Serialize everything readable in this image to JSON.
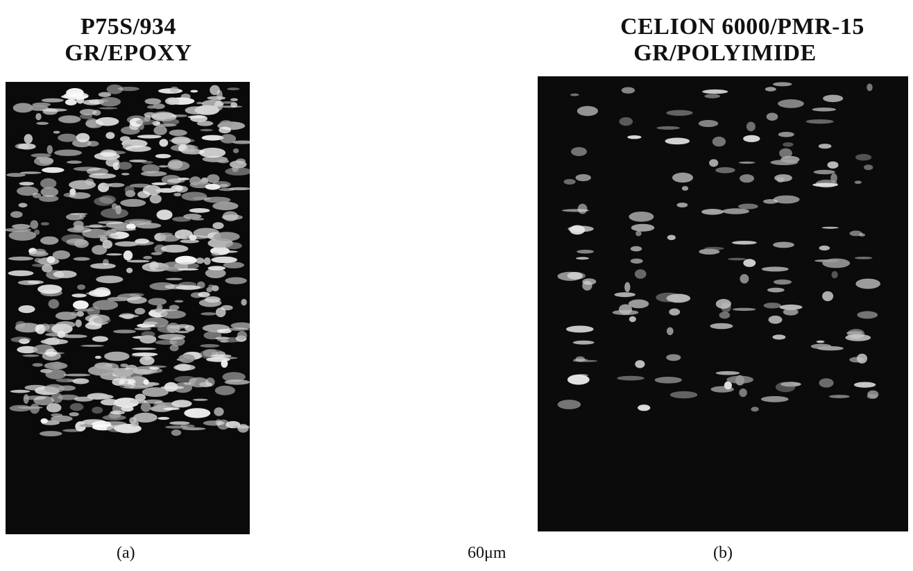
{
  "panels": [
    {
      "title": [
        "P75S/934",
        "GR/EPOXY"
      ],
      "caption": "(a)"
    },
    {
      "title": [
        "CELION 6000/PMR-15",
        "GR/POLYIMIDE"
      ],
      "caption": "(b)"
    }
  ],
  "scale_label": "60μm"
}
